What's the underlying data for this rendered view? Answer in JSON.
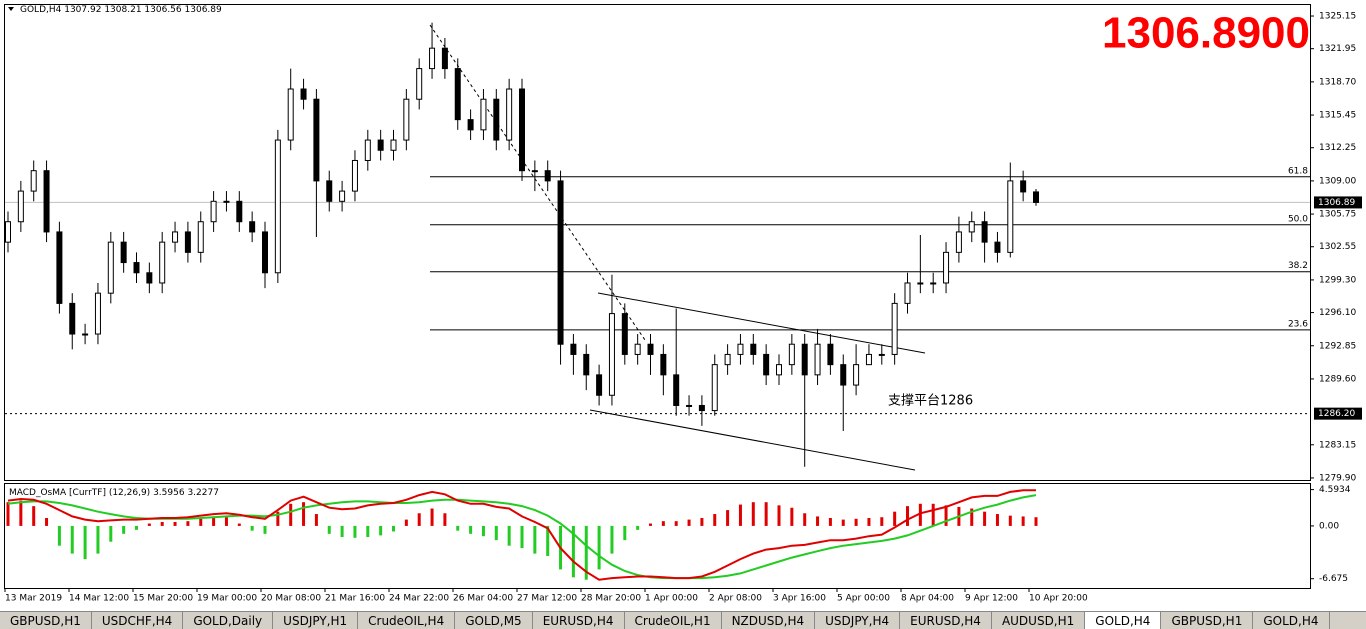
{
  "header": {
    "symbol": "GOLD,H4",
    "ohlc": [
      1307.92,
      1308.21,
      1306.56,
      1306.89
    ]
  },
  "big_price": "1306.8900",
  "chart_data": [
    {
      "type": "candlestick",
      "open": [
        1303,
        1305,
        1308,
        1310,
        1304,
        1297,
        1294,
        1294,
        1298,
        1303,
        1301,
        1300,
        1299,
        1303,
        1304,
        1302,
        1305,
        1307,
        1307,
        1305,
        1304,
        1300,
        1313,
        1318,
        1317,
        1309,
        1307,
        1308,
        1311,
        1313,
        1312,
        1313,
        1317,
        1320,
        1322,
        1320,
        1315,
        1314,
        1317,
        1313,
        1318,
        1310,
        1310,
        1309,
        1293,
        1292,
        1290,
        1288,
        1296,
        1292,
        1293,
        1292,
        1290,
        1287,
        1287,
        1286.5,
        1291,
        1292,
        1293,
        1292,
        1290,
        1291,
        1293,
        1290,
        1293,
        1291,
        1289,
        1291,
        1292,
        1292,
        1297,
        1299,
        1299,
        1299,
        1302,
        1304,
        1305,
        1303,
        1302,
        1309,
        1307.92
      ],
      "high": [
        1306,
        1309,
        1311,
        1311,
        1305,
        1298,
        1295,
        1299,
        1304,
        1304,
        1302,
        1301,
        1304,
        1305,
        1305,
        1306,
        1308,
        1308,
        1308,
        1306,
        1305,
        1314,
        1320,
        1319,
        1318,
        1310,
        1309,
        1312,
        1314,
        1314,
        1314,
        1318,
        1321,
        1324.5,
        1323,
        1321,
        1316,
        1318,
        1318,
        1319,
        1319,
        1311,
        1311,
        1310,
        1294,
        1293,
        1291,
        1299.8,
        1297,
        1294,
        1294,
        1293,
        1296.5,
        1288,
        1288,
        1292,
        1293,
        1294,
        1294,
        1293,
        1292,
        1294,
        1294,
        1294.5,
        1294,
        1292,
        1293,
        1293,
        1293,
        1298,
        1300,
        1303.7,
        1300,
        1303,
        1305.5,
        1306,
        1306,
        1304,
        1310.8,
        1310,
        1308.21
      ],
      "low": [
        1302,
        1304,
        1307,
        1303,
        1296,
        1292.5,
        1293,
        1293,
        1297,
        1300,
        1299,
        1298,
        1298,
        1302,
        1301,
        1301,
        1304,
        1306,
        1304,
        1303,
        1298.5,
        1299,
        1312,
        1316,
        1303.5,
        1306,
        1306,
        1307,
        1310,
        1311,
        1311,
        1312,
        1316,
        1319,
        1319,
        1314,
        1313,
        1313,
        1312,
        1312,
        1309,
        1308,
        1308,
        1291,
        1290,
        1288.5,
        1287,
        1287,
        1291,
        1291,
        1290,
        1288,
        1286,
        1286,
        1285,
        1286,
        1290,
        1291,
        1291,
        1289,
        1289,
        1290,
        1281,
        1289,
        1290,
        1284.5,
        1288,
        1291,
        1291,
        1291,
        1296,
        1298,
        1298,
        1298,
        1301,
        1303,
        1301,
        1301,
        1301.5,
        1307,
        1306.56
      ],
      "close": [
        1305,
        1308,
        1310,
        1304,
        1297,
        1294,
        1294,
        1298,
        1303,
        1301,
        1300,
        1299,
        1303,
        1304,
        1302,
        1305,
        1307,
        1307,
        1305,
        1304,
        1300,
        1313,
        1318,
        1317,
        1309,
        1307,
        1308,
        1311,
        1313,
        1312,
        1313,
        1317,
        1320,
        1322,
        1320,
        1315,
        1314,
        1317,
        1313,
        1318,
        1310,
        1310,
        1309,
        1293,
        1292,
        1290,
        1288,
        1296,
        1292,
        1293,
        1292,
        1290,
        1287,
        1287,
        1286.5,
        1291,
        1292,
        1293,
        1292,
        1290,
        1291,
        1293,
        1290,
        1293,
        1291,
        1289,
        1291,
        1292,
        1292,
        1297,
        1299,
        1299,
        1299,
        1302,
        1304,
        1305,
        1303,
        1302,
        1309,
        1307.92,
        1306.89
      ],
      "x_labels": [
        "13 Mar 2019",
        "14 Mar 12:00",
        "15 Mar 20:00",
        "19 Mar 00:00",
        "20 Mar 08:00",
        "21 Mar 16:00",
        "24 Mar 22:00",
        "26 Mar 04:00",
        "27 Mar 12:00",
        "28 Mar 20:00",
        "1 Apr 00:00",
        "2 Apr 08:00",
        "3 Apr 16:00",
        "5 Apr 00:00",
        "8 Apr 04:00",
        "9 Apr 12:00",
        "10 Apr 20:00"
      ],
      "ylim": [
        1279.7,
        1326.23
      ],
      "yticks": [
        1325.15,
        1321.95,
        {
          "value": 1318.7,
          "label": "1318.70"
        },
        1315.45,
        1312.25,
        {
          "value": 1309,
          "label": "1309.00"
        },
        1305.75,
        1302.55,
        {
          "value": 1299.3,
          "label": "1299.30"
        },
        {
          "value": 1296.1,
          "label": "1296.10"
        },
        1292.85,
        {
          "value": 1289.6,
          "label": "1289.60"
        },
        1283.15,
        {
          "value": 1279.9,
          "label": "1279.90"
        }
      ],
      "last_price": 1306.89,
      "support_price": {
        "value": 1286.2,
        "label": "1286.20"
      },
      "fib_levels": [
        {
          "value": 1309.4,
          "label": "61.8"
        },
        {
          "value": 1304.7,
          "label": "50.0"
        },
        {
          "value": 1300.1,
          "label": "38.2"
        },
        {
          "value": 1294.4,
          "label": "23.6"
        }
      ],
      "annotation": "支撑平台1286",
      "up_color": "#ffffff",
      "down_color": "#000000"
    },
    {
      "type": "macd",
      "title": "MACD_OsMA [CurrTF] (12,26,9)",
      "readout": [
        3.5956,
        3.2277
      ],
      "macd_line": {
        "color": "#e00000",
        "values": [
          3.2,
          3.4,
          3.3,
          2.8,
          2.0,
          1.2,
          0.8,
          0.6,
          0.7,
          0.8,
          0.8,
          0.9,
          1.0,
          1.0,
          1.1,
          1.3,
          1.5,
          1.6,
          1.4,
          1.1,
          0.9,
          2.0,
          3.2,
          3.7,
          3.0,
          2.3,
          2.1,
          2.2,
          2.6,
          2.8,
          2.9,
          3.3,
          3.9,
          4.3,
          4.0,
          3.2,
          2.8,
          2.8,
          2.4,
          2.2,
          1.2,
          0.5,
          -0.3,
          -2.8,
          -4.5,
          -5.8,
          -6.8,
          -6.6,
          -6.5,
          -6.4,
          -6.4,
          -6.5,
          -6.6,
          -6.6,
          -6.4,
          -5.8,
          -5.0,
          -4.2,
          -3.5,
          -3.0,
          -2.8,
          -2.5,
          -2.4,
          -2.1,
          -1.8,
          -1.8,
          -1.6,
          -1.3,
          -1.1,
          -0.2,
          0.8,
          1.6,
          2.0,
          2.4,
          3.0,
          3.6,
          3.8,
          3.8,
          4.3,
          4.5,
          4.5
        ]
      },
      "signal_line": {
        "color": "#22cc22",
        "values": [
          2.8,
          3.0,
          3.1,
          3.1,
          2.9,
          2.6,
          2.2,
          1.8,
          1.5,
          1.2,
          1.0,
          0.9,
          0.9,
          0.9,
          0.9,
          1.0,
          1.1,
          1.2,
          1.3,
          1.3,
          1.2,
          1.4,
          1.8,
          2.3,
          2.6,
          2.8,
          3.0,
          3.1,
          3.1,
          3.0,
          2.9,
          2.9,
          3.0,
          3.2,
          3.3,
          3.3,
          3.2,
          3.1,
          3.0,
          2.8,
          2.5,
          2.0,
          1.3,
          0.3,
          -1.0,
          -2.5,
          -3.8,
          -4.9,
          -5.7,
          -6.2,
          -6.5,
          -6.6,
          -6.6,
          -6.6,
          -6.6,
          -6.5,
          -6.3,
          -6.0,
          -5.5,
          -5.0,
          -4.5,
          -4.0,
          -3.6,
          -3.2,
          -2.8,
          -2.5,
          -2.3,
          -2.1,
          -1.9,
          -1.6,
          -1.2,
          -0.6,
          0.0,
          0.6,
          1.2,
          1.8,
          2.3,
          2.7,
          3.2,
          3.6,
          3.9
        ]
      },
      "histogram": {
        "up_color": "#e00000",
        "down_color": "#22cc22",
        "values": [
          3.0,
          3.2,
          2.5,
          1.0,
          -2.5,
          -3.5,
          -4.2,
          -3.5,
          -2.0,
          -1.0,
          -0.5,
          0.3,
          0.5,
          0.5,
          0.6,
          0.9,
          1.2,
          1.1,
          0.3,
          -0.6,
          -1.0,
          1.8,
          2.8,
          3.0,
          1.5,
          -1.0,
          -1.4,
          -1.5,
          -1.4,
          -1.2,
          -0.7,
          0.8,
          1.6,
          2.2,
          1.6,
          -0.6,
          -1.0,
          -1.3,
          -1.8,
          -2.5,
          -2.8,
          -3.5,
          -3.8,
          -5.5,
          -6.5,
          -6.8,
          -5.5,
          -3.5,
          -1.8,
          -0.5,
          0.3,
          0.6,
          0.6,
          0.8,
          1.0,
          1.5,
          2.0,
          2.7,
          3.0,
          3.0,
          2.6,
          2.3,
          1.6,
          1.2,
          1.0,
          0.8,
          0.9,
          1.0,
          1.1,
          1.8,
          2.5,
          2.8,
          2.8,
          2.6,
          2.4,
          2.2,
          1.8,
          1.5,
          1.3,
          1.2,
          1.1
        ]
      },
      "ylim": [
        -7.85,
        5.3
      ],
      "yticks": [
        4.5934,
        {
          "value": 0,
          "label": "0.00"
        },
        -6.675
      ]
    }
  ],
  "tabs": [
    {
      "label": "GBPUSD,H1"
    },
    {
      "label": "USDCHF,H4"
    },
    {
      "label": "GOLD,Daily"
    },
    {
      "label": "USDJPY,H1"
    },
    {
      "label": "CrudeOIL,H4"
    },
    {
      "label": "GOLD,M5"
    },
    {
      "label": "EURUSD,H4"
    },
    {
      "label": "CrudeOIL,H1"
    },
    {
      "label": "NZDUSD,H4"
    },
    {
      "label": "USDJPY,H4"
    },
    {
      "label": "EURUSD,H4"
    },
    {
      "label": "AUDUSD,H1"
    },
    {
      "label": "GOLD,H4",
      "active": true
    },
    {
      "label": "GBPUSD,H1"
    },
    {
      "label": "GOLD,H4"
    }
  ]
}
